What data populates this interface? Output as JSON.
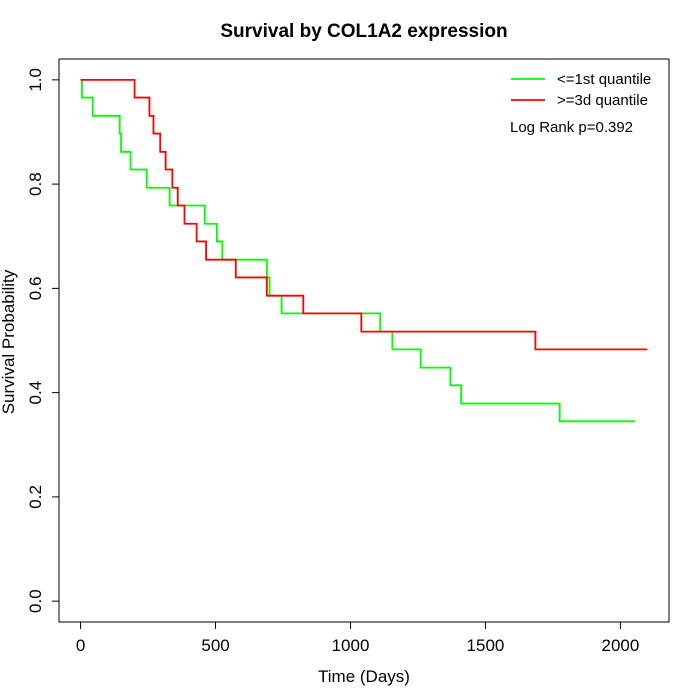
{
  "chart_data": {
    "type": "line",
    "title": "Survival by COL1A2 expression",
    "xlabel": "Time (Days)",
    "ylabel": "Survival Probability",
    "xlim": [
      -80,
      2180
    ],
    "ylim": [
      -0.04,
      1.04
    ],
    "x_ticks": [
      0,
      500,
      1000,
      1500,
      2000
    ],
    "y_ticks": [
      0.0,
      0.2,
      0.4,
      0.6,
      0.8,
      1.0
    ],
    "x_tick_labels": [
      "0",
      "500",
      "1000",
      "1500",
      "2000"
    ],
    "y_tick_labels": [
      "0.0",
      "0.2",
      "0.4",
      "0.6",
      "0.8",
      "1.0"
    ],
    "grid": false,
    "legend_position": "top-right",
    "annotation": "Log Rank p=0.392",
    "series": [
      {
        "name": "<=1st quantile",
        "color": "#00ff00",
        "steps": [
          [
            0,
            1.0
          ],
          [
            5,
            0.966
          ],
          [
            45,
            0.931
          ],
          [
            145,
            0.897
          ],
          [
            150,
            0.862
          ],
          [
            185,
            0.828
          ],
          [
            245,
            0.793
          ],
          [
            330,
            0.759
          ],
          [
            460,
            0.724
          ],
          [
            505,
            0.69
          ],
          [
            525,
            0.655
          ],
          [
            690,
            0.621
          ],
          [
            700,
            0.586
          ],
          [
            745,
            0.552
          ],
          [
            1110,
            0.517
          ],
          [
            1155,
            0.483
          ],
          [
            1260,
            0.448
          ],
          [
            1370,
            0.414
          ],
          [
            1410,
            0.379
          ],
          [
            1775,
            0.345
          ],
          [
            2055,
            0.345
          ]
        ]
      },
      {
        "name": ">=3d quantile",
        "color": "#ff0000",
        "steps": [
          [
            0,
            1.0
          ],
          [
            200,
            0.966
          ],
          [
            255,
            0.931
          ],
          [
            270,
            0.897
          ],
          [
            295,
            0.862
          ],
          [
            315,
            0.828
          ],
          [
            340,
            0.793
          ],
          [
            360,
            0.759
          ],
          [
            385,
            0.724
          ],
          [
            430,
            0.69
          ],
          [
            465,
            0.655
          ],
          [
            575,
            0.621
          ],
          [
            690,
            0.586
          ],
          [
            825,
            0.552
          ],
          [
            1040,
            0.517
          ],
          [
            1685,
            0.483
          ],
          [
            2100,
            0.483
          ]
        ]
      }
    ]
  }
}
